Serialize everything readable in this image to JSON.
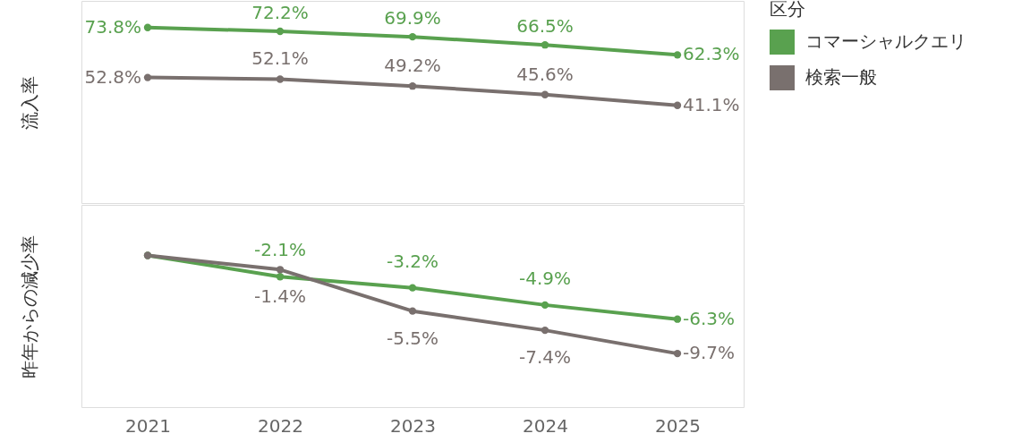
{
  "chart_data": [
    {
      "type": "line",
      "ylabel": "流入率",
      "legend_title": "区分",
      "legend": "right",
      "categories": [
        "2021",
        "2022",
        "2023",
        "2024",
        "2025"
      ],
      "ylim": [
        0,
        85
      ],
      "tick_labels": false,
      "marker": "circle",
      "series": [
        {
          "name": "コマーシャルクエリ",
          "color": "#59a14f",
          "values": [
            73.8,
            72.2,
            69.9,
            66.5,
            62.3
          ],
          "value_labels": [
            "73.8%",
            "72.2%",
            "69.9%",
            "66.5%",
            "62.3%"
          ]
        },
        {
          "name": "検索一般",
          "color": "#79706e",
          "values": [
            52.8,
            52.1,
            49.2,
            45.6,
            41.1
          ],
          "value_labels": [
            "52.8%",
            "52.1%",
            "49.2%",
            "45.6%",
            "41.1%"
          ]
        }
      ]
    },
    {
      "type": "line",
      "ylabel": "昨年からの減少率",
      "categories": [
        "2021",
        "2022",
        "2023",
        "2024",
        "2025"
      ],
      "ylim": [
        -15,
        5
      ],
      "tick_labels": "x",
      "marker": "circle",
      "series": [
        {
          "name": "コマーシャルクエリ",
          "color": "#59a14f",
          "values": [
            0,
            -2.1,
            -3.2,
            -4.9,
            -6.3
          ],
          "value_labels": [
            null,
            "-2.1%",
            "-3.2%",
            "-4.9%",
            "-6.3%"
          ]
        },
        {
          "name": "検索一般",
          "color": "#79706e",
          "values": [
            0,
            -1.4,
            -5.5,
            -7.4,
            -9.7
          ],
          "value_labels": [
            null,
            "-1.4%",
            "-5.5%",
            "-7.4%",
            "-9.7%"
          ]
        }
      ]
    }
  ]
}
